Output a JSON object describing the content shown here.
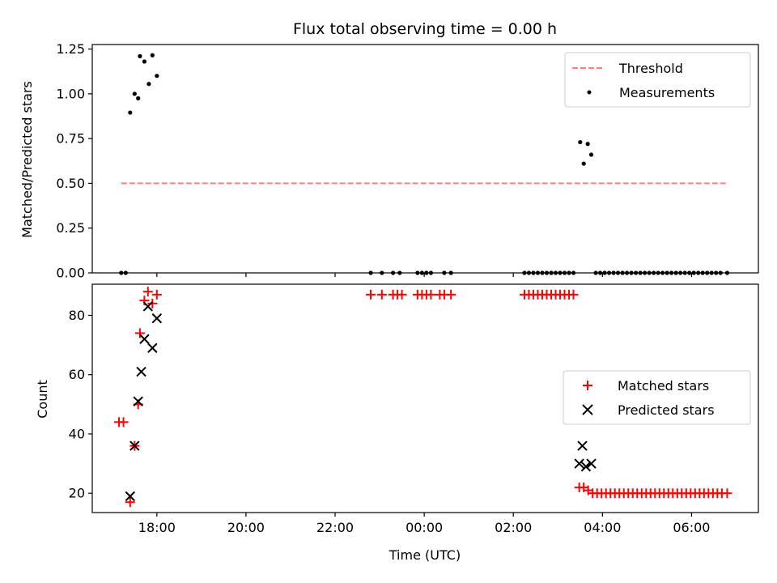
{
  "chart_data": [
    {
      "type": "scatter",
      "title": "Flux total observing time = 0.00 h",
      "xlabel": "",
      "ylabel": "Matched/Predicted stars",
      "xlim": [
        16.55,
        31.5
      ],
      "ylim": [
        0.0,
        1.275
      ],
      "yticks": [
        0.0,
        0.25,
        0.5,
        0.75,
        1.0,
        1.25
      ],
      "ytick_labels": [
        "0.00",
        "0.25",
        "0.50",
        "0.75",
        "1.00",
        "1.25"
      ],
      "xticks": [
        18,
        20,
        22,
        24,
        26,
        28,
        30
      ],
      "xtick_labels": [
        "",
        "",
        "",
        "",
        "",
        "",
        ""
      ],
      "legend": {
        "position": "top-right",
        "entries": [
          "Threshold",
          "Measurements"
        ]
      },
      "threshold": {
        "name": "Threshold",
        "y": 0.5,
        "x_range": [
          17.2,
          30.8
        ],
        "color": "#ff7f7f"
      },
      "series": [
        {
          "name": "Measurements",
          "marker": "dot",
          "color": "#000000",
          "points": [
            [
              17.2,
              0.0
            ],
            [
              17.3,
              0.0
            ],
            [
              17.4,
              0.895
            ],
            [
              17.5,
              1.0
            ],
            [
              17.58,
              0.975
            ],
            [
              17.62,
              1.21
            ],
            [
              17.72,
              1.18
            ],
            [
              17.82,
              1.055
            ],
            [
              17.9,
              1.215
            ],
            [
              18.0,
              1.1
            ],
            [
              22.8,
              0.0
            ],
            [
              23.05,
              0.0
            ],
            [
              23.3,
              0.0
            ],
            [
              23.45,
              0.0
            ],
            [
              23.85,
              0.0
            ],
            [
              23.95,
              0.0
            ],
            [
              24.05,
              0.0
            ],
            [
              24.15,
              0.0
            ],
            [
              24.45,
              0.0
            ],
            [
              24.6,
              0.0
            ],
            [
              26.25,
              0.0
            ],
            [
              26.35,
              0.0
            ],
            [
              26.45,
              0.0
            ],
            [
              26.55,
              0.0
            ],
            [
              26.65,
              0.0
            ],
            [
              26.75,
              0.0
            ],
            [
              26.85,
              0.0
            ],
            [
              26.95,
              0.0
            ],
            [
              27.05,
              0.0
            ],
            [
              27.15,
              0.0
            ],
            [
              27.25,
              0.0
            ],
            [
              27.35,
              0.0
            ],
            [
              27.5,
              0.73
            ],
            [
              27.58,
              0.61
            ],
            [
              27.67,
              0.72
            ],
            [
              27.75,
              0.66
            ],
            [
              27.85,
              0.0
            ],
            [
              27.95,
              0.0
            ],
            [
              28.05,
              0.0
            ],
            [
              28.15,
              0.0
            ],
            [
              28.25,
              0.0
            ],
            [
              28.35,
              0.0
            ],
            [
              28.45,
              0.0
            ],
            [
              28.55,
              0.0
            ],
            [
              28.65,
              0.0
            ],
            [
              28.75,
              0.0
            ],
            [
              28.85,
              0.0
            ],
            [
              28.95,
              0.0
            ],
            [
              29.05,
              0.0
            ],
            [
              29.15,
              0.0
            ],
            [
              29.25,
              0.0
            ],
            [
              29.35,
              0.0
            ],
            [
              29.45,
              0.0
            ],
            [
              29.55,
              0.0
            ],
            [
              29.65,
              0.0
            ],
            [
              29.75,
              0.0
            ],
            [
              29.85,
              0.0
            ],
            [
              29.95,
              0.0
            ],
            [
              30.05,
              0.0
            ],
            [
              30.15,
              0.0
            ],
            [
              30.25,
              0.0
            ],
            [
              30.35,
              0.0
            ],
            [
              30.45,
              0.0
            ],
            [
              30.55,
              0.0
            ],
            [
              30.65,
              0.0
            ],
            [
              30.8,
              0.0
            ]
          ]
        }
      ]
    },
    {
      "type": "scatter",
      "title": "",
      "xlabel": "Time (UTC)",
      "ylabel": "Count",
      "xlim": [
        16.55,
        31.5
      ],
      "ylim": [
        13.5,
        90.5
      ],
      "yticks": [
        20,
        40,
        60,
        80
      ],
      "ytick_labels": [
        "20",
        "40",
        "60",
        "80"
      ],
      "xticks": [
        18,
        20,
        22,
        24,
        26,
        28,
        30
      ],
      "xtick_labels": [
        "18:00",
        "20:00",
        "22:00",
        "00:00",
        "02:00",
        "04:00",
        "06:00"
      ],
      "legend": {
        "position": "center-right",
        "entries": [
          "Matched stars",
          "Predicted stars"
        ]
      },
      "series": [
        {
          "name": "Matched stars",
          "marker": "plus",
          "color": "#ff0000",
          "points": [
            [
              17.15,
              44
            ],
            [
              17.25,
              44
            ],
            [
              17.4,
              17
            ],
            [
              17.5,
              36
            ],
            [
              17.58,
              50
            ],
            [
              17.62,
              74
            ],
            [
              17.72,
              85
            ],
            [
              17.8,
              88
            ],
            [
              17.9,
              84
            ],
            [
              18.0,
              87
            ],
            [
              22.8,
              87
            ],
            [
              23.05,
              87
            ],
            [
              23.3,
              87
            ],
            [
              23.4,
              87
            ],
            [
              23.5,
              87
            ],
            [
              23.85,
              87
            ],
            [
              23.95,
              87
            ],
            [
              24.05,
              87
            ],
            [
              24.15,
              87
            ],
            [
              24.35,
              87
            ],
            [
              24.45,
              87
            ],
            [
              24.6,
              87
            ],
            [
              26.25,
              87
            ],
            [
              26.35,
              87
            ],
            [
              26.45,
              87
            ],
            [
              26.55,
              87
            ],
            [
              26.65,
              87
            ],
            [
              26.75,
              87
            ],
            [
              26.85,
              87
            ],
            [
              26.95,
              87
            ],
            [
              27.05,
              87
            ],
            [
              27.15,
              87
            ],
            [
              27.25,
              87
            ],
            [
              27.35,
              87
            ],
            [
              27.48,
              22
            ],
            [
              27.58,
              22
            ],
            [
              27.68,
              21
            ],
            [
              27.78,
              20
            ],
            [
              27.88,
              20
            ],
            [
              27.98,
              20
            ],
            [
              28.08,
              20
            ],
            [
              28.18,
              20
            ],
            [
              28.28,
              20
            ],
            [
              28.38,
              20
            ],
            [
              28.48,
              20
            ],
            [
              28.58,
              20
            ],
            [
              28.68,
              20
            ],
            [
              28.78,
              20
            ],
            [
              28.88,
              20
            ],
            [
              28.98,
              20
            ],
            [
              29.08,
              20
            ],
            [
              29.18,
              20
            ],
            [
              29.28,
              20
            ],
            [
              29.38,
              20
            ],
            [
              29.48,
              20
            ],
            [
              29.58,
              20
            ],
            [
              29.68,
              20
            ],
            [
              29.78,
              20
            ],
            [
              29.88,
              20
            ],
            [
              29.98,
              20
            ],
            [
              30.08,
              20
            ],
            [
              30.18,
              20
            ],
            [
              30.28,
              20
            ],
            [
              30.38,
              20
            ],
            [
              30.48,
              20
            ],
            [
              30.58,
              20
            ],
            [
              30.68,
              20
            ],
            [
              30.8,
              20
            ]
          ]
        },
        {
          "name": "Predicted stars",
          "marker": "x",
          "color": "#000000",
          "points": [
            [
              17.4,
              19
            ],
            [
              17.5,
              36
            ],
            [
              17.58,
              51
            ],
            [
              17.65,
              61
            ],
            [
              17.72,
              72
            ],
            [
              17.8,
              83
            ],
            [
              17.9,
              69
            ],
            [
              18.0,
              79
            ],
            [
              27.48,
              30
            ],
            [
              27.55,
              36
            ],
            [
              27.63,
              29
            ],
            [
              27.75,
              30
            ]
          ]
        }
      ]
    }
  ]
}
